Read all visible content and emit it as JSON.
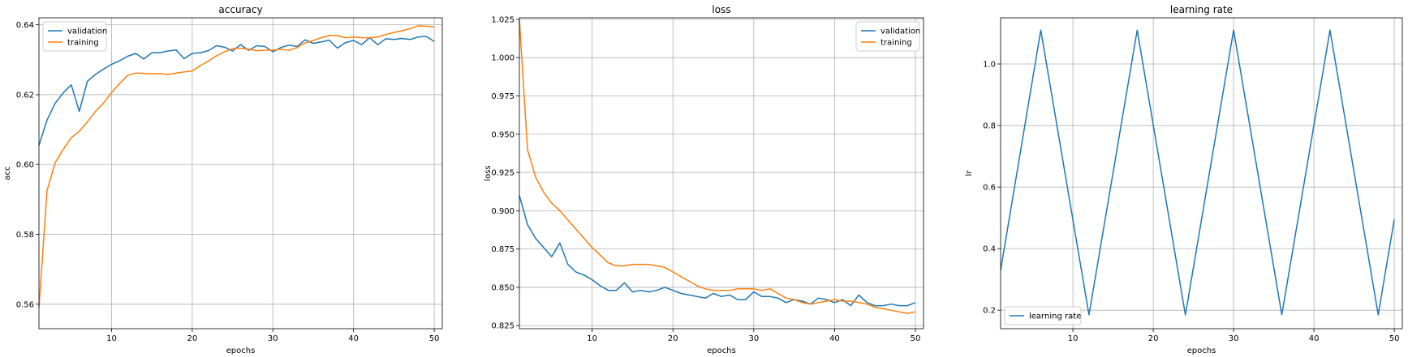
{
  "chart_data": [
    {
      "type": "line",
      "title": "accuracy",
      "xlabel": "epochs",
      "ylabel": "acc",
      "xlim": [
        1,
        51
      ],
      "ylim": [
        0.553,
        0.642
      ],
      "xticks": [
        10,
        20,
        30,
        40,
        50
      ],
      "yticks": [
        0.56,
        0.58,
        0.6,
        0.62,
        0.64
      ],
      "ytick_labels": [
        "0.56",
        "0.58",
        "0.60",
        "0.62",
        "0.64"
      ],
      "grid": true,
      "legend": "top-left",
      "x": [
        1,
        2,
        3,
        4,
        5,
        6,
        7,
        8,
        9,
        10,
        11,
        12,
        13,
        14,
        15,
        16,
        17,
        18,
        19,
        20,
        21,
        22,
        23,
        24,
        25,
        26,
        27,
        28,
        29,
        30,
        31,
        32,
        33,
        34,
        35,
        36,
        37,
        38,
        39,
        40,
        41,
        42,
        43,
        44,
        45,
        46,
        47,
        48,
        49,
        50
      ],
      "series": [
        {
          "name": "validation",
          "color": "#1f77b4",
          "values": [
            0.6055,
            0.6127,
            0.6175,
            0.6205,
            0.6228,
            0.6152,
            0.6238,
            0.6258,
            0.6273,
            0.6287,
            0.6297,
            0.631,
            0.6318,
            0.6302,
            0.632,
            0.632,
            0.6325,
            0.6328,
            0.6303,
            0.6318,
            0.632,
            0.6326,
            0.634,
            0.6336,
            0.6325,
            0.6343,
            0.6327,
            0.634,
            0.6338,
            0.6323,
            0.6335,
            0.6342,
            0.6338,
            0.6357,
            0.6347,
            0.6351,
            0.6356,
            0.6333,
            0.6349,
            0.6355,
            0.6343,
            0.6363,
            0.6343,
            0.636,
            0.6358,
            0.6361,
            0.6358,
            0.6365,
            0.6367,
            0.6352
          ]
        },
        {
          "name": "training",
          "color": "#ff7f0e",
          "values": [
            0.559,
            0.5925,
            0.6005,
            0.6043,
            0.6077,
            0.6095,
            0.6122,
            0.6152,
            0.6176,
            0.6206,
            0.6232,
            0.6255,
            0.6262,
            0.6261,
            0.626,
            0.626,
            0.6258,
            0.6262,
            0.6265,
            0.6268,
            0.6283,
            0.6296,
            0.6311,
            0.6323,
            0.6332,
            0.6333,
            0.633,
            0.6326,
            0.6327,
            0.6328,
            0.633,
            0.6327,
            0.6335,
            0.6348,
            0.6355,
            0.6363,
            0.637,
            0.6369,
            0.6363,
            0.6365,
            0.6363,
            0.6363,
            0.6365,
            0.6372,
            0.6378,
            0.6383,
            0.6389,
            0.6397,
            0.6396,
            0.6394
          ]
        }
      ]
    },
    {
      "type": "line",
      "title": "loss",
      "xlabel": "epochs",
      "ylabel": "loss",
      "xlim": [
        1,
        51
      ],
      "ylim": [
        0.823,
        1.026
      ],
      "xticks": [
        10,
        20,
        30,
        40,
        50
      ],
      "yticks": [
        0.825,
        0.85,
        0.875,
        0.9,
        0.925,
        0.95,
        0.975,
        1.0,
        1.025
      ],
      "ytick_labels": [
        "0.825",
        "0.850",
        "0.875",
        "0.900",
        "0.925",
        "0.950",
        "0.975",
        "1.000",
        "1.025"
      ],
      "grid": true,
      "legend": "top-right",
      "x": [
        1,
        2,
        3,
        4,
        5,
        6,
        7,
        8,
        9,
        10,
        11,
        12,
        13,
        14,
        15,
        16,
        17,
        18,
        19,
        20,
        21,
        22,
        23,
        24,
        25,
        26,
        27,
        28,
        29,
        30,
        31,
        32,
        33,
        34,
        35,
        36,
        37,
        38,
        39,
        40,
        41,
        42,
        43,
        44,
        45,
        46,
        47,
        48,
        49,
        50
      ],
      "series": [
        {
          "name": "validation",
          "color": "#1f77b4",
          "values": [
            0.91,
            0.891,
            0.882,
            0.876,
            0.87,
            0.879,
            0.865,
            0.86,
            0.858,
            0.855,
            0.851,
            0.848,
            0.848,
            0.853,
            0.847,
            0.848,
            0.847,
            0.848,
            0.85,
            0.848,
            0.846,
            0.845,
            0.844,
            0.843,
            0.846,
            0.844,
            0.845,
            0.842,
            0.842,
            0.847,
            0.844,
            0.844,
            0.843,
            0.84,
            0.842,
            0.841,
            0.839,
            0.843,
            0.842,
            0.84,
            0.842,
            0.838,
            0.845,
            0.84,
            0.838,
            0.838,
            0.839,
            0.838,
            0.838,
            0.84
          ]
        },
        {
          "name": "training",
          "color": "#ff7f0e",
          "values": [
            1.025,
            0.94,
            0.922,
            0.912,
            0.905,
            0.9,
            0.894,
            0.888,
            0.882,
            0.876,
            0.871,
            0.866,
            0.864,
            0.864,
            0.865,
            0.865,
            0.865,
            0.864,
            0.863,
            0.86,
            0.857,
            0.854,
            0.851,
            0.849,
            0.848,
            0.848,
            0.848,
            0.849,
            0.849,
            0.849,
            0.848,
            0.849,
            0.846,
            0.843,
            0.842,
            0.84,
            0.839,
            0.84,
            0.841,
            0.842,
            0.841,
            0.841,
            0.84,
            0.839,
            0.837,
            0.836,
            0.835,
            0.834,
            0.833,
            0.834
          ]
        }
      ]
    },
    {
      "type": "line",
      "title": "learning rate",
      "xlabel": "epochs",
      "ylabel": "lr",
      "xlim": [
        1,
        51
      ],
      "ylim": [
        0.14,
        1.15
      ],
      "xticks": [
        10,
        20,
        30,
        40,
        50
      ],
      "yticks": [
        0.2,
        0.4,
        0.6,
        0.8,
        1.0
      ],
      "ytick_labels": [
        "0.2",
        "0.4",
        "0.6",
        "0.8",
        "1.0"
      ],
      "grid": true,
      "legend": "bottom-left",
      "x": [
        1,
        6,
        12,
        18,
        24,
        30,
        36,
        42,
        48,
        50
      ],
      "series": [
        {
          "name": "learning rate",
          "color": "#1f77b4",
          "values": [
            0.33,
            1.11,
            0.185,
            1.11,
            0.185,
            1.11,
            0.185,
            1.11,
            0.185,
            0.495
          ]
        }
      ]
    }
  ]
}
